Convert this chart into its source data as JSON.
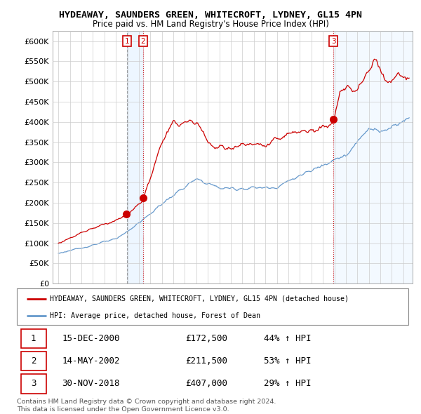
{
  "title": "HYDEAWAY, SAUNDERS GREEN, WHITECROFT, LYDNEY, GL15 4PN",
  "subtitle": "Price paid vs. HM Land Registry's House Price Index (HPI)",
  "legend_label_red": "HYDEAWAY, SAUNDERS GREEN, WHITECROFT, LYDNEY, GL15 4PN (detached house)",
  "legend_label_blue": "HPI: Average price, detached house, Forest of Dean",
  "footer_line1": "Contains HM Land Registry data © Crown copyright and database right 2024.",
  "footer_line2": "This data is licensed under the Open Government Licence v3.0.",
  "transactions": [
    {
      "num": 1,
      "date": "15-DEC-2000",
      "price": "£172,500",
      "change": "44% ↑ HPI"
    },
    {
      "num": 2,
      "date": "14-MAY-2002",
      "price": "£211,500",
      "change": "53% ↑ HPI"
    },
    {
      "num": 3,
      "date": "30-NOV-2018",
      "price": "£407,000",
      "change": "29% ↑ HPI"
    }
  ],
  "sale_years": [
    2000.96,
    2002.37,
    2018.92
  ],
  "sale_prices": [
    172500,
    211500,
    407000
  ],
  "ylim": [
    0,
    625000
  ],
  "yticks": [
    0,
    50000,
    100000,
    150000,
    200000,
    250000,
    300000,
    350000,
    400000,
    450000,
    500000,
    550000,
    600000
  ],
  "ytick_labels": [
    "£0",
    "£50K",
    "£100K",
    "£150K",
    "£200K",
    "£250K",
    "£300K",
    "£350K",
    "£400K",
    "£450K",
    "£500K",
    "£550K",
    "£600K"
  ],
  "color_red": "#cc0000",
  "color_blue": "#6699cc",
  "bg_color": "#ffffff",
  "grid_color": "#cccccc",
  "chart_bg": "#ffffff",
  "shade_color": "#ddeeff"
}
